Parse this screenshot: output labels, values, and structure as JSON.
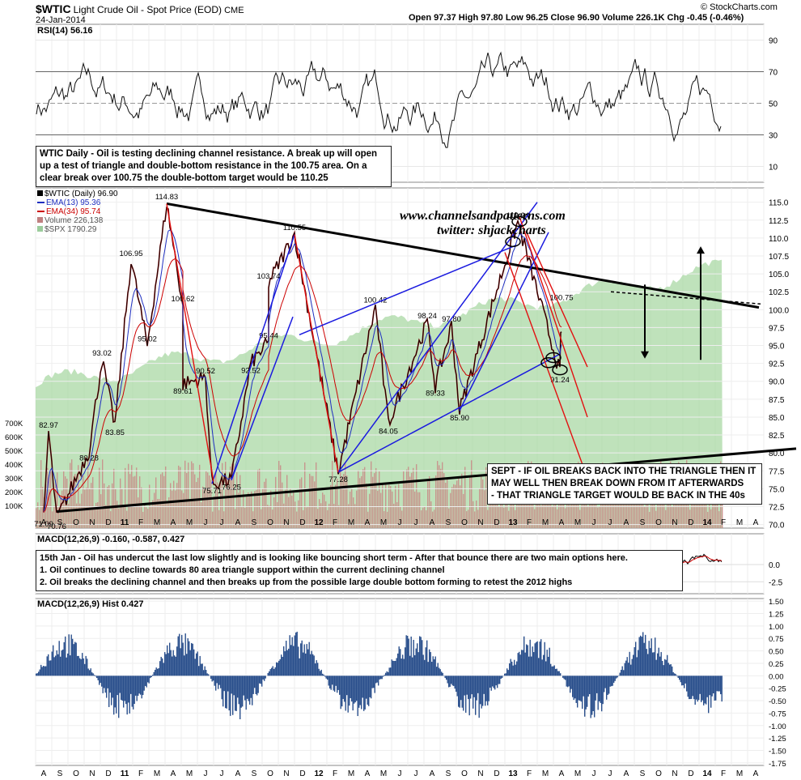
{
  "header": {
    "symbol": "$WTIC",
    "name": "Light Crude Oil - Spot Price (EOD)",
    "exchange": "CME",
    "date": "24-Jan-2014",
    "ohlc_text": "Open 97.37  High 97.80  Low 96.25  Close 96.90  Volume 226.1K  Chg -0.45 (-0.46%)",
    "copyright": "© StockCharts.com"
  },
  "rsi_panel": {
    "label": "RSI(14) 56.16",
    "levels": [
      "90",
      "70",
      "50",
      "30",
      "10"
    ]
  },
  "annotations": {
    "top_note": [
      "WTIC Daily - Oil is testing declining channel resistance. A break up will open",
      "up a test of triangle and double-bottom resistance in the 100.75 area. On a",
      "clear break over 100.75 the double-bottom target would be 110.25"
    ],
    "sept_note": [
      "SEPT - IF OIL BREAKS BACK INTO THE TRIANGLE THEN IT",
      "MAY WELL THEN BREAK DOWN FROM IT AFTERWARDS",
      "- THAT TRIANGLE TARGET WOULD BE BACK IN THE 40s"
    ],
    "jan_note": [
      "15th Jan - Oil has undercut the last low slightly and is looking like bouncing short term - After that bounce there are two main options here.",
      "1. Oil continues to decline towards 80 area triangle support within the current declining channel",
      "2. Oil breaks the declining channel and then breaks up from the possible large double bottom forming to retest the 2012 highs"
    ],
    "site": "www.channelsandpatterns.com",
    "twitter": "twitter: shjackcharts"
  },
  "price_legend": [
    {
      "text": "$WTIC (Daily) 96.90",
      "color": "#000000"
    },
    {
      "text": "EMA(13) 95.36",
      "color": "#1f2fc0"
    },
    {
      "text": "EMA(34) 95.74",
      "color": "#cc0000"
    },
    {
      "text": "Volume 226,138",
      "color": "#b06060"
    },
    {
      "text": "$SPX 1790.29",
      "color": "#5a9a5a"
    }
  ],
  "macd_panel": {
    "label": "MACD(12,26,9) -0.160, -0.587, 0.427",
    "levels": [
      "0.0",
      "-2.5"
    ]
  },
  "hist_panel": {
    "label": "MACD(12,26,9) Hist 0.427"
  },
  "chart_data": [
    {
      "type": "line",
      "title": "RSI(14) 56.16",
      "ylim": [
        0,
        100
      ],
      "yticks": [
        10,
        30,
        50,
        70,
        90
      ]
    },
    {
      "type": "line",
      "title": "$WTIC (Daily) 96.90",
      "yticks": [
        70.0,
        72.5,
        75.0,
        77.5,
        80.0,
        82.5,
        85.0,
        87.5,
        90.0,
        92.5,
        95.0,
        97.5,
        100.0,
        102.5,
        105.0,
        107.5,
        110.0,
        112.5,
        115.0
      ],
      "ylim": [
        69.5,
        117
      ],
      "volume_ticks": [
        "700K",
        "600K",
        "500K",
        "400K",
        "300K",
        "200K",
        "100K"
      ],
      "x_months": [
        "A",
        "S",
        "O",
        "N",
        "D",
        "11",
        "F",
        "M",
        "A",
        "M",
        "J",
        "J",
        "A",
        "S",
        "O",
        "N",
        "D",
        "12",
        "F",
        "M",
        "A",
        "M",
        "J",
        "J",
        "A",
        "S",
        "O",
        "N",
        "D",
        "13",
        "F",
        "M",
        "A",
        "M",
        "J",
        "J",
        "A",
        "S",
        "O",
        "N",
        "D",
        "14",
        "F",
        "M",
        "A"
      ],
      "price_labels": [
        {
          "month": 0.0,
          "value": 71.09,
          "text": "71.09"
        },
        {
          "month": 0.8,
          "value": 70.76,
          "text": "70.76"
        },
        {
          "month": 0.3,
          "value": 82.97,
          "text": "82.97"
        },
        {
          "month": 2.8,
          "value": 80.28,
          "text": "80.28"
        },
        {
          "month": 3.6,
          "value": 93.02,
          "text": "93.02"
        },
        {
          "month": 4.4,
          "value": 83.85,
          "text": "83.85"
        },
        {
          "month": 5.4,
          "value": 106.95,
          "text": "106.95"
        },
        {
          "month": 6.4,
          "value": 95.02,
          "text": "95.02"
        },
        {
          "month": 7.6,
          "value": 114.83,
          "text": "114.83"
        },
        {
          "month": 8.6,
          "value": 100.62,
          "text": "100.62"
        },
        {
          "month": 8.6,
          "value": 89.61,
          "text": "89.61"
        },
        {
          "month": 10.0,
          "value": 90.52,
          "text": "90.52"
        },
        {
          "month": 10.4,
          "value": 75.71,
          "text": "75.71"
        },
        {
          "month": 11.6,
          "value": 76.25,
          "text": "76.25"
        },
        {
          "month": 12.8,
          "value": 92.52,
          "text": "92.52"
        },
        {
          "month": 13.9,
          "value": 95.44,
          "text": "95.44"
        },
        {
          "month": 13.9,
          "value": 103.74,
          "text": "103.74"
        },
        {
          "month": 15.5,
          "value": 110.55,
          "text": "110.55"
        },
        {
          "month": 18.2,
          "value": 77.28,
          "text": "77.28"
        },
        {
          "month": 20.5,
          "value": 100.42,
          "text": "100.42"
        },
        {
          "month": 21.3,
          "value": 84.05,
          "text": "84.05"
        },
        {
          "month": 23.7,
          "value": 98.24,
          "text": "98.24"
        },
        {
          "month": 24.2,
          "value": 89.33,
          "text": "89.33"
        },
        {
          "month": 25.2,
          "value": 97.8,
          "text": "97.80"
        },
        {
          "month": 25.7,
          "value": 85.9,
          "text": "85.90"
        },
        {
          "month": 29.3,
          "value": 112.24,
          "text": "112.24"
        },
        {
          "month": 32.0,
          "value": 100.75,
          "text": "100.75"
        },
        {
          "month": 31.9,
          "value": 91.24,
          "text": "91.24"
        }
      ]
    },
    {
      "type": "line",
      "title": "MACD(12,26,9) -0.160, -0.587, 0.427",
      "yticks": [
        0.0,
        -2.5
      ]
    },
    {
      "type": "bar",
      "title": "MACD(12,26,9) Hist 0.427",
      "yticks": [
        1.5,
        1.25,
        1.0,
        0.75,
        0.5,
        0.25,
        0.0,
        -0.25,
        -0.5,
        -0.75,
        -1.0,
        -1.25,
        -1.5,
        -1.75
      ],
      "ylim": [
        -1.8,
        1.55
      ]
    }
  ]
}
